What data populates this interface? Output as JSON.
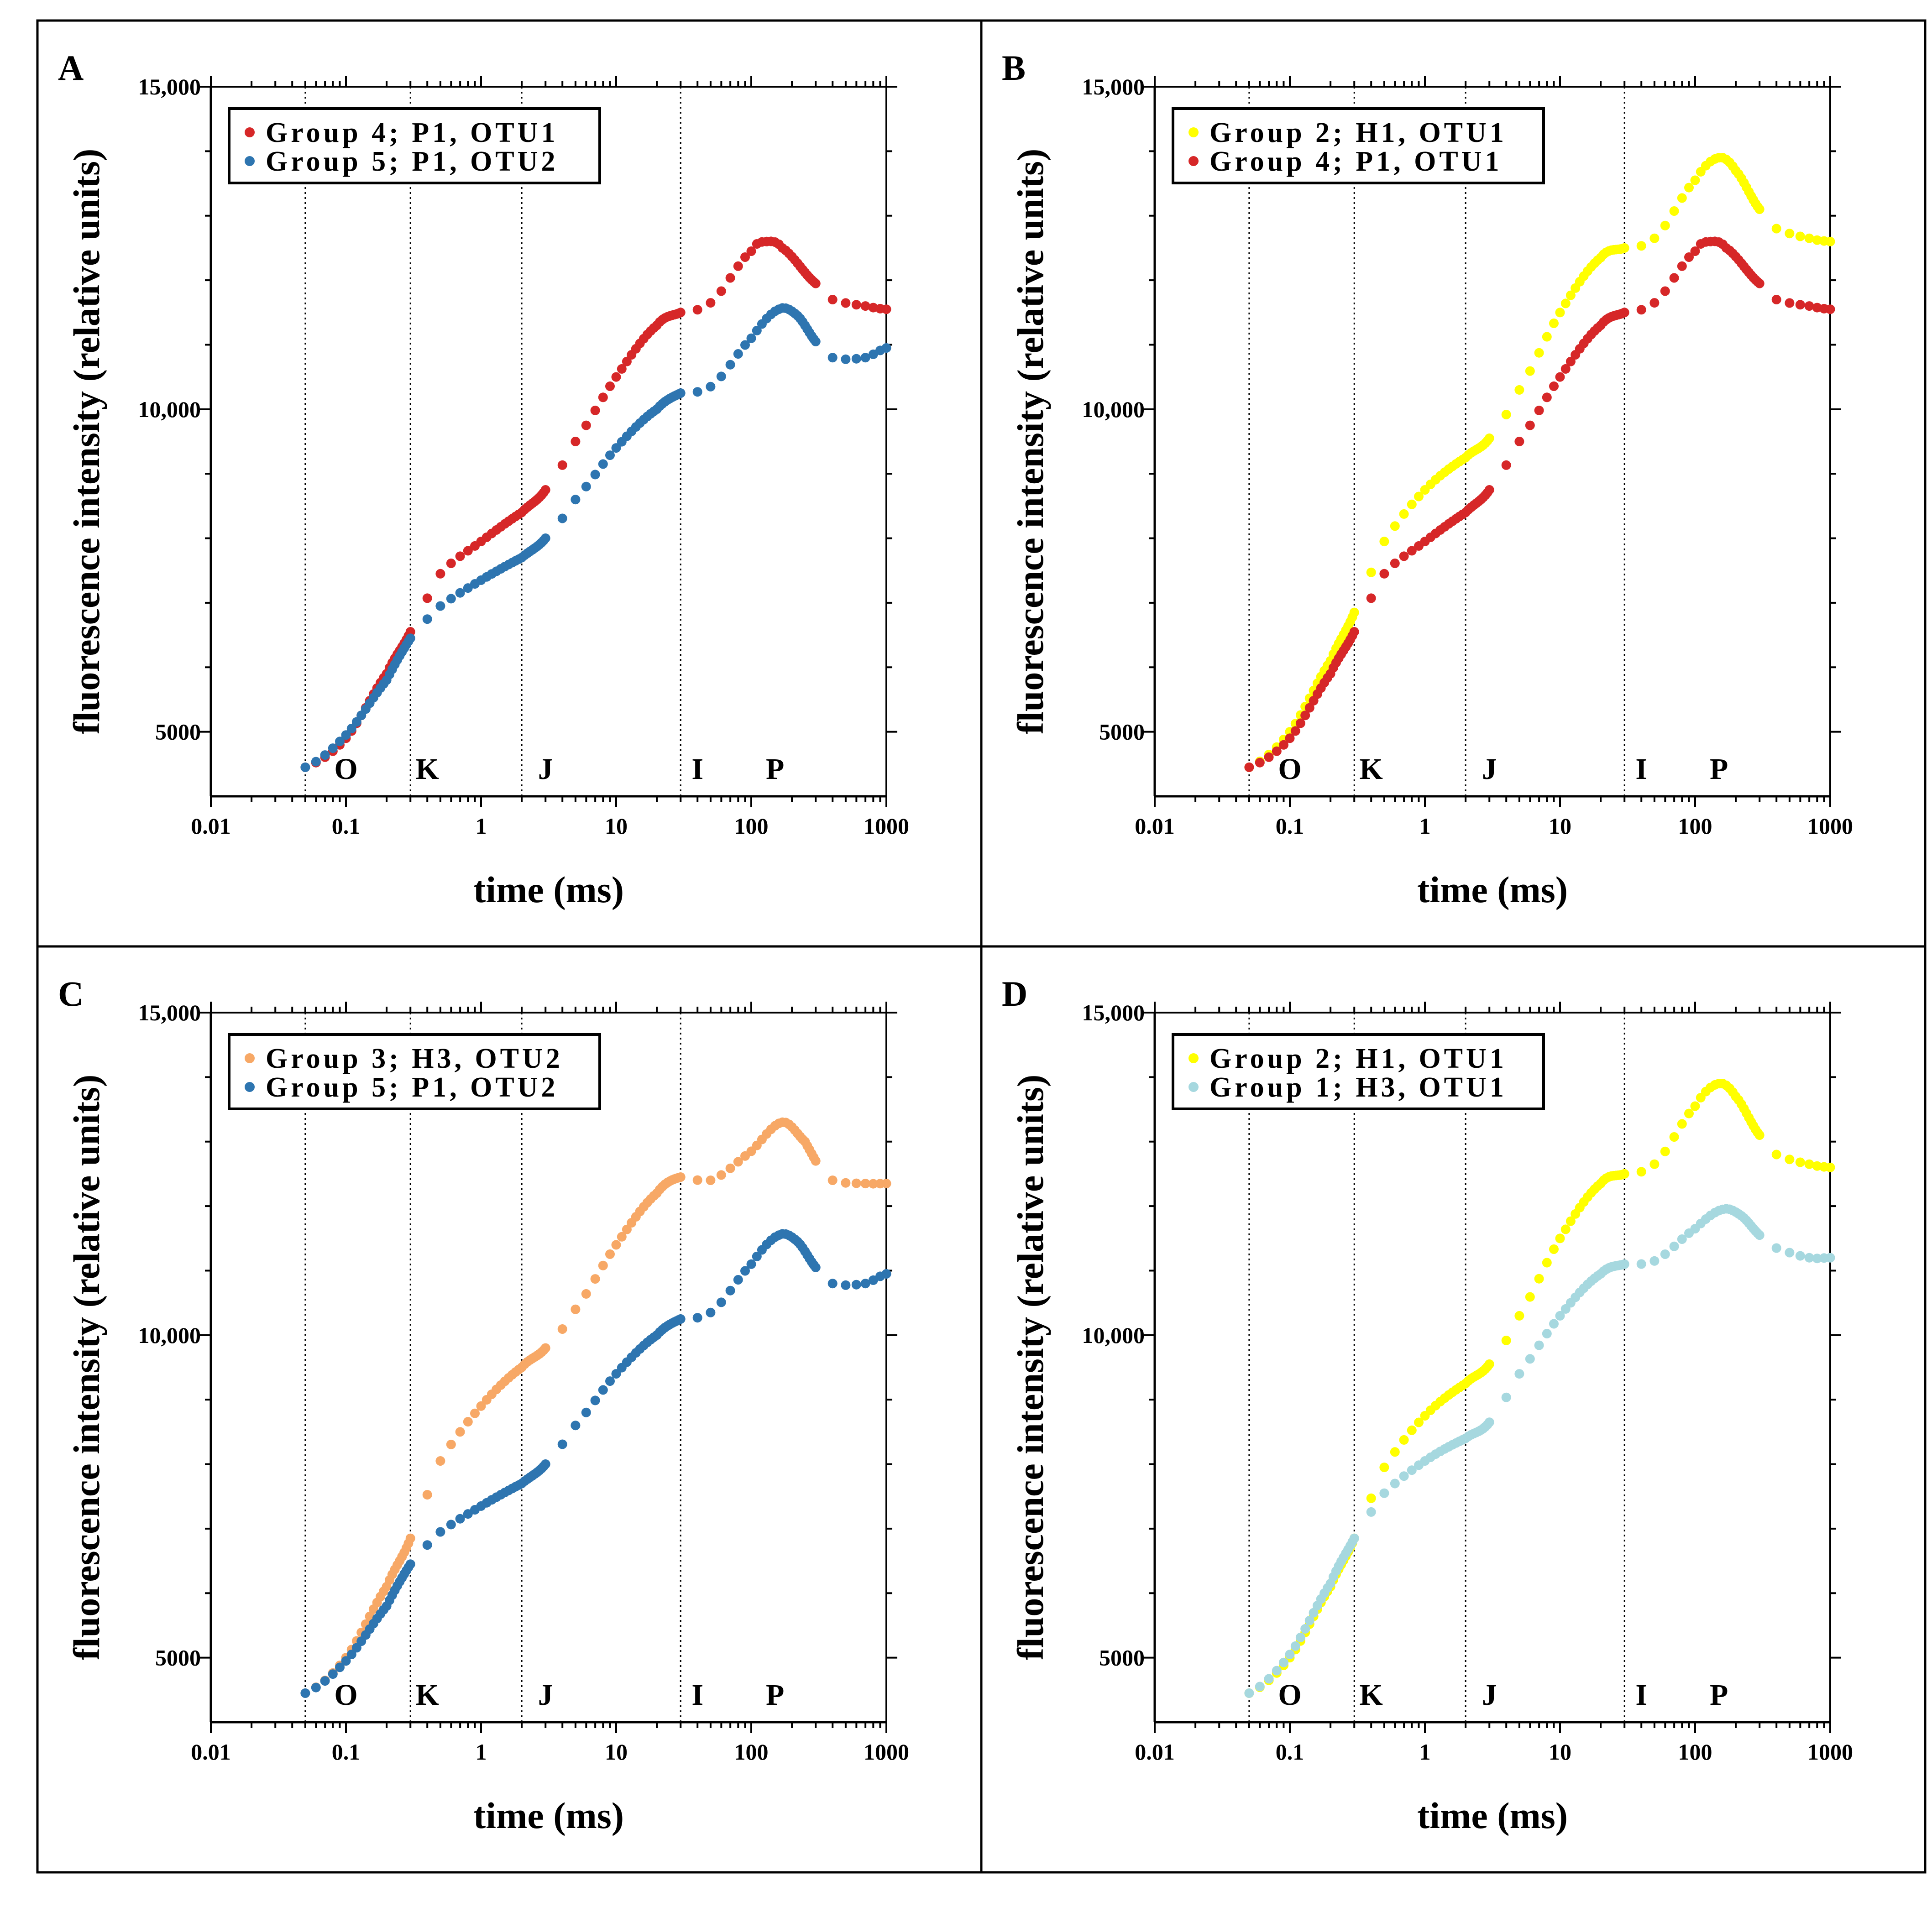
{
  "figure": {
    "colors": {
      "red": "#d62728",
      "blue": "#2e75b0",
      "yellow": "#ffff00",
      "orange": "#f7a866",
      "lightblue": "#a6d8df"
    },
    "phase_labels": [
      "O",
      "K",
      "J",
      "I",
      "P"
    ]
  },
  "chart_data": [
    {
      "panel": "A",
      "type": "scatter",
      "xscale": "log",
      "xlabel": "time (ms)",
      "ylabel": "fluorescence intensity (relative units)",
      "xlim": [
        0.01,
        1000
      ],
      "ylim": [
        4000,
        15000
      ],
      "xticks": [
        "0.01",
        "0.1",
        "1",
        "10",
        "100",
        "1000"
      ],
      "yticks": [
        "5000",
        "10,000",
        "15,000"
      ],
      "phase_lines_ms": [
        0.05,
        0.3,
        2,
        30
      ],
      "phase_label_positions_ms": [
        {
          "label": "O",
          "x": 0.1
        },
        {
          "label": "K",
          "x": 0.4
        },
        {
          "label": "J",
          "x": 3
        },
        {
          "label": "I",
          "x": 40
        },
        {
          "label": "P",
          "x": 150
        }
      ],
      "legend": [
        "Group 4; P1, OTU1",
        "Group 5; P1, OTU2"
      ],
      "series": [
        {
          "name": "Group 4; P1, OTU1",
          "color": "red",
          "points": [
            [
              0.05,
              4450
            ],
            [
              0.1,
              4900
            ],
            [
              0.2,
              5900
            ],
            [
              0.3,
              6550
            ],
            [
              0.5,
              7450
            ],
            [
              1,
              7950
            ],
            [
              2,
              8400
            ],
            [
              3,
              8750
            ],
            [
              5,
              9500
            ],
            [
              10,
              10500
            ],
            [
              20,
              11300
            ],
            [
              30,
              11500
            ],
            [
              50,
              11650
            ],
            [
              100,
              12450
            ],
            [
              130,
              12600
            ],
            [
              170,
              12500
            ],
            [
              300,
              11950
            ],
            [
              400,
              11700
            ],
            [
              700,
              11600
            ],
            [
              1000,
              11550
            ]
          ]
        },
        {
          "name": "Group 5; P1, OTU2",
          "color": "blue",
          "points": [
            [
              0.05,
              4450
            ],
            [
              0.1,
              4950
            ],
            [
              0.2,
              5800
            ],
            [
              0.3,
              6450
            ],
            [
              0.5,
              6950
            ],
            [
              1,
              7350
            ],
            [
              2,
              7700
            ],
            [
              3,
              8000
            ],
            [
              5,
              8600
            ],
            [
              10,
              9400
            ],
            [
              20,
              10000
            ],
            [
              30,
              10250
            ],
            [
              50,
              10350
            ],
            [
              100,
              11100
            ],
            [
              160,
              11550
            ],
            [
              220,
              11450
            ],
            [
              300,
              11050
            ],
            [
              400,
              10800
            ],
            [
              700,
              10800
            ],
            [
              1000,
              10950
            ]
          ]
        }
      ]
    },
    {
      "panel": "B",
      "type": "scatter",
      "xscale": "log",
      "xlabel": "time (ms)",
      "ylabel": "fluorescence intensity (relative units)",
      "xlim": [
        0.01,
        1000
      ],
      "ylim": [
        4000,
        15000
      ],
      "xticks": [
        "0.01",
        "0.1",
        "1",
        "10",
        "100",
        "1000"
      ],
      "yticks": [
        "5000",
        "10,000",
        "15,000"
      ],
      "phase_lines_ms": [
        0.05,
        0.3,
        2,
        30
      ],
      "phase_label_positions_ms": [
        {
          "label": "O",
          "x": 0.1
        },
        {
          "label": "K",
          "x": 0.4
        },
        {
          "label": "J",
          "x": 3
        },
        {
          "label": "I",
          "x": 40
        },
        {
          "label": "P",
          "x": 150
        }
      ],
      "legend": [
        "Group 2; H1, OTU1",
        "Group 4; P1, OTU1"
      ],
      "series": [
        {
          "name": "Group 2; H1, OTU1",
          "color": "yellow",
          "points": [
            [
              0.05,
              4450
            ],
            [
              0.1,
              5000
            ],
            [
              0.2,
              6100
            ],
            [
              0.3,
              6850
            ],
            [
              0.5,
              7950
            ],
            [
              1,
              8750
            ],
            [
              2,
              9250
            ],
            [
              3,
              9550
            ],
            [
              5,
              10300
            ],
            [
              10,
              11500
            ],
            [
              20,
              12350
            ],
            [
              30,
              12500
            ],
            [
              50,
              12650
            ],
            [
              100,
              13550
            ],
            [
              150,
              13900
            ],
            [
              200,
              13700
            ],
            [
              300,
              13100
            ],
            [
              400,
              12800
            ],
            [
              700,
              12650
            ],
            [
              1000,
              12600
            ]
          ]
        },
        {
          "name": "Group 4; P1, OTU1",
          "color": "red",
          "points": [
            [
              0.05,
              4450
            ],
            [
              0.1,
              4900
            ],
            [
              0.2,
              5900
            ],
            [
              0.3,
              6550
            ],
            [
              0.5,
              7450
            ],
            [
              1,
              7950
            ],
            [
              2,
              8400
            ],
            [
              3,
              8750
            ],
            [
              5,
              9500
            ],
            [
              10,
              10500
            ],
            [
              20,
              11300
            ],
            [
              30,
              11500
            ],
            [
              50,
              11650
            ],
            [
              100,
              12450
            ],
            [
              130,
              12600
            ],
            [
              170,
              12500
            ],
            [
              300,
              11950
            ],
            [
              400,
              11700
            ],
            [
              700,
              11600
            ],
            [
              1000,
              11550
            ]
          ]
        }
      ]
    },
    {
      "panel": "C",
      "type": "scatter",
      "xscale": "log",
      "xlabel": "time (ms)",
      "ylabel": "fluorescence intensity (relative units)",
      "xlim": [
        0.01,
        1000
      ],
      "ylim": [
        4000,
        15000
      ],
      "xticks": [
        "0.01",
        "0.1",
        "1",
        "10",
        "100",
        "1000"
      ],
      "yticks": [
        "5000",
        "10,000",
        "15,000"
      ],
      "phase_lines_ms": [
        0.05,
        0.3,
        2,
        30
      ],
      "phase_label_positions_ms": [
        {
          "label": "O",
          "x": 0.1
        },
        {
          "label": "K",
          "x": 0.4
        },
        {
          "label": "J",
          "x": 3
        },
        {
          "label": "I",
          "x": 40
        },
        {
          "label": "P",
          "x": 150
        }
      ],
      "legend": [
        "Group 3; H3, OTU2",
        "Group 5; P1, OTU2"
      ],
      "series": [
        {
          "name": "Group 3; H3, OTU2",
          "color": "orange",
          "points": [
            [
              0.05,
              4450
            ],
            [
              0.1,
              5000
            ],
            [
              0.2,
              6100
            ],
            [
              0.3,
              6850
            ],
            [
              0.5,
              8050
            ],
            [
              1,
              8900
            ],
            [
              2,
              9500
            ],
            [
              3,
              9800
            ],
            [
              5,
              10400
            ],
            [
              10,
              11400
            ],
            [
              20,
              12200
            ],
            [
              30,
              12450
            ],
            [
              50,
              12400
            ],
            [
              100,
              12850
            ],
            [
              170,
              13300
            ],
            [
              250,
              13000
            ],
            [
              300,
              12700
            ],
            [
              400,
              12400
            ],
            [
              700,
              12350
            ],
            [
              1000,
              12350
            ]
          ]
        },
        {
          "name": "Group 5; P1, OTU2",
          "color": "blue",
          "points": [
            [
              0.05,
              4450
            ],
            [
              0.1,
              4950
            ],
            [
              0.2,
              5800
            ],
            [
              0.3,
              6450
            ],
            [
              0.5,
              6950
            ],
            [
              1,
              7350
            ],
            [
              2,
              7700
            ],
            [
              3,
              8000
            ],
            [
              5,
              8600
            ],
            [
              10,
              9400
            ],
            [
              20,
              10000
            ],
            [
              30,
              10250
            ],
            [
              50,
              10350
            ],
            [
              100,
              11100
            ],
            [
              160,
              11550
            ],
            [
              220,
              11450
            ],
            [
              300,
              11050
            ],
            [
              400,
              10800
            ],
            [
              700,
              10800
            ],
            [
              1000,
              10950
            ]
          ]
        }
      ]
    },
    {
      "panel": "D",
      "type": "scatter",
      "xscale": "log",
      "xlabel": "time (ms)",
      "ylabel": "fluorescence intensity (relative units)",
      "xlim": [
        0.01,
        1000
      ],
      "ylim": [
        4000,
        15000
      ],
      "xticks": [
        "0.01",
        "0.1",
        "1",
        "10",
        "100",
        "1000"
      ],
      "yticks": [
        "5000",
        "10,000",
        "15,000"
      ],
      "phase_lines_ms": [
        0.05,
        0.3,
        2,
        30
      ],
      "phase_label_positions_ms": [
        {
          "label": "O",
          "x": 0.1
        },
        {
          "label": "K",
          "x": 0.4
        },
        {
          "label": "J",
          "x": 3
        },
        {
          "label": "I",
          "x": 40
        },
        {
          "label": "P",
          "x": 150
        }
      ],
      "legend": [
        "Group 2; H1, OTU1",
        "Group 1; H3, OTU1"
      ],
      "series": [
        {
          "name": "Group 2; H1, OTU1",
          "color": "yellow",
          "points": [
            [
              0.05,
              4450
            ],
            [
              0.1,
              5000
            ],
            [
              0.2,
              6100
            ],
            [
              0.3,
              6850
            ],
            [
              0.5,
              7950
            ],
            [
              1,
              8750
            ],
            [
              2,
              9250
            ],
            [
              3,
              9550
            ],
            [
              5,
              10300
            ],
            [
              10,
              11500
            ],
            [
              20,
              12350
            ],
            [
              30,
              12500
            ],
            [
              50,
              12650
            ],
            [
              100,
              13550
            ],
            [
              150,
              13900
            ],
            [
              200,
              13700
            ],
            [
              300,
              13100
            ],
            [
              400,
              12800
            ],
            [
              700,
              12650
            ],
            [
              1000,
              12600
            ]
          ]
        },
        {
          "name": "Group 1; H3, OTU1",
          "color": "lightblue",
          "points": [
            [
              0.05,
              4450
            ],
            [
              0.1,
              5050
            ],
            [
              0.2,
              6150
            ],
            [
              0.3,
              6850
            ],
            [
              0.5,
              7550
            ],
            [
              1,
              8050
            ],
            [
              2,
              8400
            ],
            [
              3,
              8650
            ],
            [
              5,
              9400
            ],
            [
              10,
              10300
            ],
            [
              20,
              10950
            ],
            [
              30,
              11100
            ],
            [
              50,
              11150
            ],
            [
              100,
              11650
            ],
            [
              160,
              11950
            ],
            [
              220,
              11850
            ],
            [
              300,
              11550
            ],
            [
              400,
              11350
            ],
            [
              700,
              11200
            ],
            [
              1000,
              11200
            ]
          ]
        }
      ]
    }
  ]
}
